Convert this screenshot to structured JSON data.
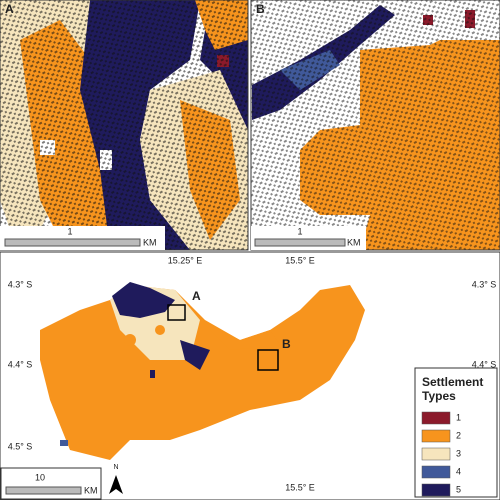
{
  "panels": [
    {
      "label": "A",
      "scale_value": "1",
      "scale_unit": "KM"
    },
    {
      "label": "B",
      "scale_value": "1",
      "scale_unit": "KM"
    }
  ],
  "overview": {
    "lon_labels": [
      "15.25° E",
      "15.5° E"
    ],
    "lat_labels": [
      "4.3° S",
      "4.4° S",
      "4.5° S"
    ],
    "scale_value": "10",
    "scale_unit": "KM",
    "north": "N"
  },
  "legend": {
    "title": "Settlement Types",
    "items": [
      {
        "label": "1",
        "color": "#8b1a2b"
      },
      {
        "label": "2",
        "color": "#f7941d"
      },
      {
        "label": "3",
        "color": "#f6e5bd"
      },
      {
        "label": "4",
        "color": "#40599a"
      },
      {
        "label": "5",
        "color": "#1f1b5c"
      }
    ]
  }
}
